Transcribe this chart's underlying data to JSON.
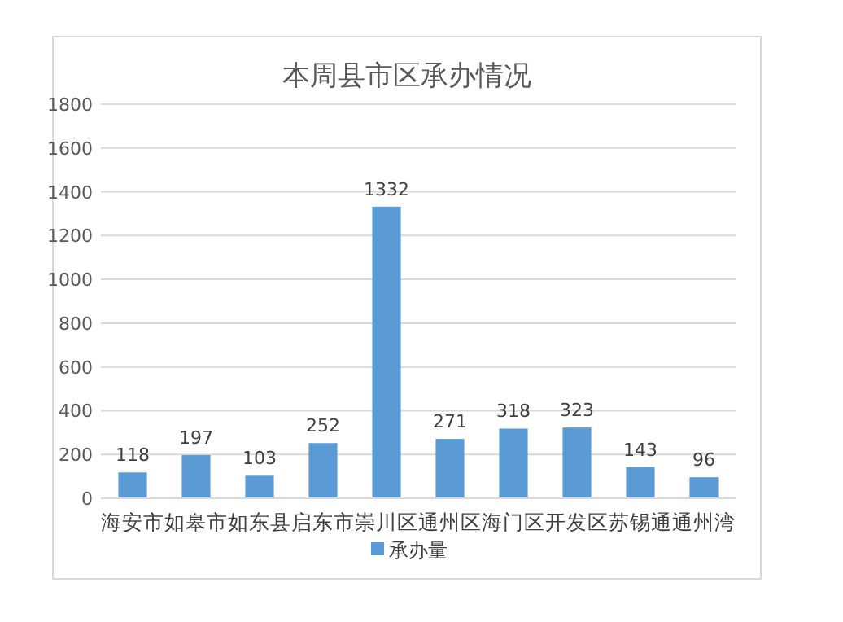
{
  "chart_data": {
    "type": "bar",
    "title": "本周县市区承办情况",
    "categories": [
      "海安市",
      "如皋市",
      "如东县",
      "启东市",
      "崇川区",
      "通州区",
      "海门区",
      "开发区",
      "苏锡通",
      "通州湾"
    ],
    "series": [
      {
        "name": "承办量",
        "color": "#5b9bd5",
        "values": [
          118,
          197,
          103,
          252,
          1332,
          271,
          318,
          323,
          143,
          96
        ]
      }
    ],
    "ylim": [
      0,
      1800
    ],
    "yticks": [
      0,
      200,
      400,
      600,
      800,
      1000,
      1200,
      1400,
      1600,
      1800
    ],
    "grid": "y",
    "legend": "bottom",
    "data_labels": true
  }
}
